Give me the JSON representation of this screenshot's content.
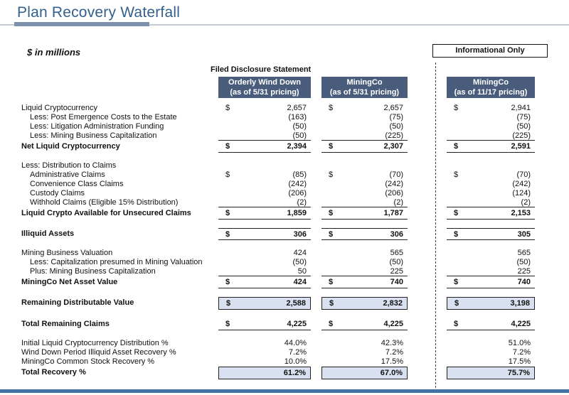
{
  "title": "Plan Recovery Waterfall",
  "units_note": "$ in millions",
  "labels": {
    "filed_disclosure": "Filed Disclosure Statement",
    "informational_only": "Informational Only"
  },
  "columns": [
    {
      "name": "Orderly Wind Down",
      "pricing": "(as of 5/31 pricing)"
    },
    {
      "name": "MiningCo",
      "pricing": "(as of 5/31 pricing)"
    },
    {
      "name": "MiningCo",
      "pricing": "(as of 11/17 pricing)"
    }
  ],
  "colors": {
    "title_color": "#33608c",
    "header_bg": "#4a5c7c",
    "boxed_fill": "#d9e0ef",
    "accent": "#7d91ac",
    "bottom_bar": "#4472a8"
  },
  "table": {
    "currency_symbol": "$",
    "rows": [
      {
        "label": "Liquid Cryptocurrency",
        "dollar": true,
        "values": [
          "2,657",
          "2,657",
          "2,941"
        ]
      },
      {
        "label": "Less: Post Emergence Costs to the Estate",
        "indent": true,
        "values": [
          "(163)",
          "(75)",
          "(75)"
        ]
      },
      {
        "label": "Less: Litigation Administration Funding",
        "indent": true,
        "values": [
          "(50)",
          "(50)",
          "(50)"
        ]
      },
      {
        "label": "Less: Mining Business Capitalization",
        "indent": true,
        "style": "pretotal",
        "values": [
          "(50)",
          "(225)",
          "(225)"
        ]
      },
      {
        "label": "Net Liquid Cryptocurrency",
        "bold": true,
        "dollar": true,
        "style": "total",
        "values": [
          "2,394",
          "2,307",
          "2,591"
        ]
      },
      {
        "type": "spacer"
      },
      {
        "label": "Less: Distribution to Claims"
      },
      {
        "label": "Administrative Claims",
        "indent": true,
        "dollar": true,
        "values": [
          "(85)",
          "(70)",
          "(70)"
        ]
      },
      {
        "label": "Convenience Class Claims",
        "indent": true,
        "values": [
          "(242)",
          "(242)",
          "(242)"
        ]
      },
      {
        "label": "Custody Claims",
        "indent": true,
        "values": [
          "(206)",
          "(206)",
          "(124)"
        ]
      },
      {
        "label": "Withhold Claims (Eligible 15% Distribution)",
        "indent": true,
        "style": "pretotal",
        "values": [
          "(2)",
          "(2)",
          "(2)"
        ]
      },
      {
        "label": "Liquid Crypto Available for Unsecured Claims",
        "bold": true,
        "dollar": true,
        "style": "total",
        "values": [
          "1,859",
          "1,787",
          "2,153"
        ]
      },
      {
        "type": "spacer"
      },
      {
        "label": "Illiquid Assets",
        "bold": true,
        "dollar": true,
        "style": "totaltop",
        "values": [
          "306",
          "306",
          "305"
        ]
      },
      {
        "type": "spacer"
      },
      {
        "label": "Mining Business Valuation",
        "values": [
          "424",
          "565",
          "565"
        ]
      },
      {
        "label": "Less: Capitalization presumed in Mining Valuation",
        "indent": true,
        "values": [
          "(50)",
          "(50)",
          "(50)"
        ]
      },
      {
        "label": "Plus: Mining Business Capitalization",
        "indent": true,
        "style": "pretotal",
        "values": [
          "50",
          "225",
          "225"
        ]
      },
      {
        "label": "MiningCo Net Asset Value",
        "bold": true,
        "dollar": true,
        "style": "total",
        "values": [
          "424",
          "740",
          "740"
        ]
      },
      {
        "type": "spacer"
      },
      {
        "label": "Remaining Distributable Value",
        "bold": true,
        "dollar": true,
        "style": "boxed",
        "values": [
          "2,588",
          "2,832",
          "3,198"
        ]
      },
      {
        "type": "spacer"
      },
      {
        "label": "Total Remaining Claims",
        "bold": true,
        "dollar": true,
        "style": "total",
        "values": [
          "4,225",
          "4,225",
          "4,225"
        ]
      },
      {
        "type": "spacer"
      },
      {
        "label": "Initial Liquid Cryptocurrency Distribution %",
        "values": [
          "44.0%",
          "42.3%",
          "51.0%"
        ]
      },
      {
        "label": "Wind Down Period Illiquid Asset Recovery %",
        "values": [
          "7.2%",
          "7.2%",
          "7.2%"
        ]
      },
      {
        "label": "MiningCo Common Stock Recovery %",
        "values": [
          "10.0%",
          "17.5%",
          "17.5%"
        ]
      },
      {
        "label": "Total Recovery %",
        "bold": true,
        "style": "boxed",
        "values": [
          "61.2%",
          "67.0%",
          "75.7%"
        ]
      }
    ]
  }
}
